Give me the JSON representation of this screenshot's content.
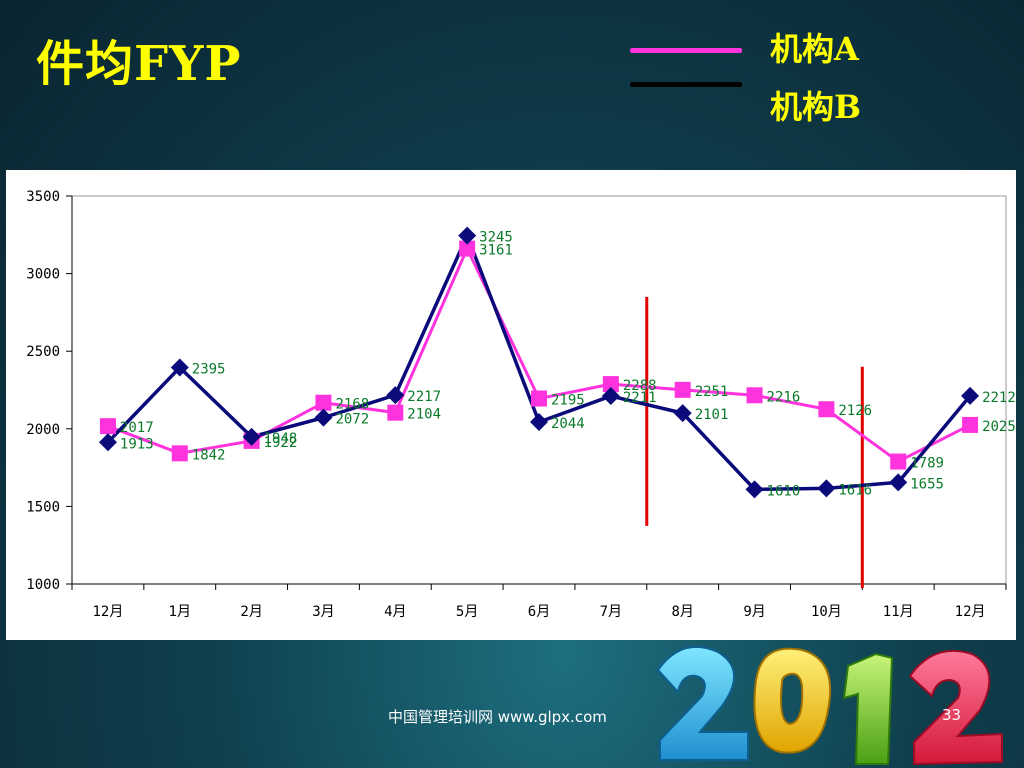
{
  "slide": {
    "title": "件均FYP",
    "footer": "中国管理培训网  www.glpx.com",
    "page_number": "33",
    "decoration_text": "2012"
  },
  "colors": {
    "series_a": "#ff33dd",
    "series_b": "#0a0a7a",
    "data_label": "#0b7a2a",
    "marker_line": "#e00000",
    "title": "#ffff00"
  },
  "chart_data": {
    "type": "line",
    "title": "",
    "xlabel": "",
    "ylabel": "",
    "categories": [
      "12月",
      "1月",
      "2月",
      "3月",
      "4月",
      "5月",
      "6月",
      "7月",
      "8月",
      "9月",
      "10月",
      "11月",
      "12月"
    ],
    "ylim": [
      1000,
      3500
    ],
    "yticks": [
      "1000",
      "1500",
      "2000",
      "2500",
      "3000",
      "3500"
    ],
    "grid": false,
    "legend": "top-right",
    "series": [
      {
        "name": "机构A",
        "marker": "square",
        "values": [
          2017,
          1842,
          1922,
          2168,
          2104,
          3161,
          2195,
          2288,
          2251,
          2216,
          2126,
          1789,
          2025
        ]
      },
      {
        "name": "机构B",
        "marker": "diamond",
        "values": [
          1913,
          2395,
          1948,
          2072,
          2217,
          3245,
          2044,
          2211,
          2101,
          1610,
          1616,
          1655,
          2212
        ]
      }
    ],
    "vertical_markers": [
      {
        "after_category": 8,
        "y_range": [
          1400,
          2850
        ]
      },
      {
        "after_category": 11,
        "y_range": [
          1000,
          2400
        ]
      }
    ]
  }
}
